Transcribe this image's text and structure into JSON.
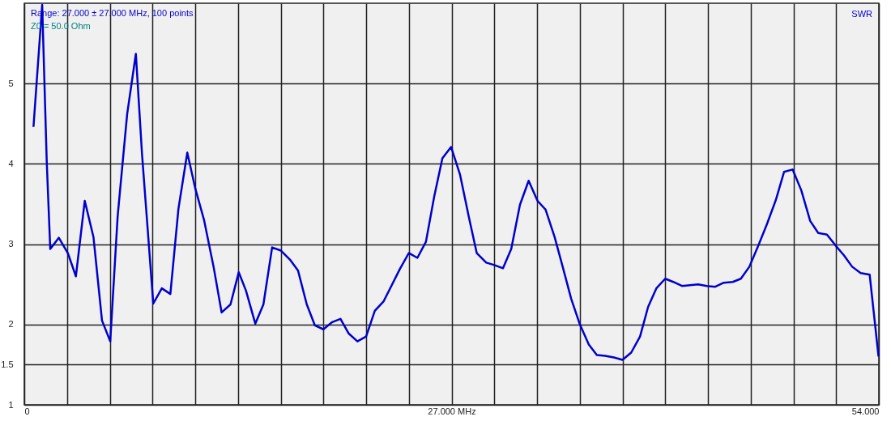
{
  "chart_data": {
    "type": "line",
    "annotations": [
      "Range: 27.000 ± 27.000 MHz, 100 points",
      "Z0 = 50.0 Ohm"
    ],
    "x": [
      0.58,
      1.13,
      1.42,
      1.64,
      2.18,
      2.75,
      3.26,
      3.82,
      4.37,
      4.91,
      5.43,
      5.9,
      6.5,
      7.05,
      7.44,
      8.15,
      8.69,
      9.23,
      9.74,
      10.3,
      10.81,
      11.36,
      11.96,
      12.47,
      13.03,
      13.55,
      14.01,
      14.6,
      15.11,
      15.66,
      16.22,
      16.82,
      17.3,
      17.85,
      18.36,
      18.9,
      19.46,
      19.98,
      20.49,
      21.05,
      21.6,
      22.15,
      22.71,
      23.22,
      23.73,
      24.3,
      24.84,
      25.38,
      25.9,
      26.42,
      26.97,
      27.53,
      28.08,
      28.59,
      29.19,
      29.7,
      30.25,
      30.77,
      31.32,
      31.87,
      32.43,
      32.94,
      33.51,
      34.02,
      34.56,
      35.11,
      35.67,
      36.18,
      36.7,
      37.26,
      37.8,
      38.35,
      38.91,
      39.42,
      39.94,
      40.5,
      41.01,
      41.56,
      42.07,
      42.58,
      43.13,
      43.66,
      44.2,
      44.77,
      45.28,
      45.82,
      46.38,
      46.93,
      47.49,
      48.01,
      48.55,
      49.1,
      49.66,
      50.17,
      50.72,
      51.28,
      51.8,
      52.31,
      52.85,
      53.42,
      53.98
    ],
    "series": [
      {
        "name": "SWR",
        "color": "#0000cc",
        "values": [
          4.46,
          5.98,
          4.02,
          2.94,
          3.08,
          2.89,
          2.6,
          3.54,
          3.09,
          2.05,
          1.79,
          3.35,
          4.62,
          5.37,
          4.12,
          2.26,
          2.45,
          2.38,
          3.44,
          4.14,
          3.69,
          3.3,
          2.72,
          2.15,
          2.25,
          2.65,
          2.42,
          2.01,
          2.25,
          2.96,
          2.92,
          2.8,
          2.67,
          2.25,
          1.99,
          1.94,
          2.03,
          2.07,
          1.89,
          1.79,
          1.85,
          2.17,
          2.29,
          2.49,
          2.69,
          2.89,
          2.83,
          3.03,
          3.59,
          4.07,
          4.21,
          3.87,
          3.35,
          2.89,
          2.77,
          2.74,
          2.7,
          2.94,
          3.49,
          3.79,
          3.54,
          3.43,
          3.09,
          2.72,
          2.32,
          2.0,
          1.75,
          1.62,
          1.61,
          1.59,
          1.56,
          1.65,
          1.85,
          2.22,
          2.45,
          2.57,
          2.53,
          2.48,
          2.49,
          2.5,
          2.48,
          2.47,
          2.52,
          2.53,
          2.57,
          2.72,
          2.98,
          3.25,
          3.55,
          3.9,
          3.93,
          3.67,
          3.29,
          3.14,
          3.12,
          2.98,
          2.86,
          2.72,
          2.64,
          2.62,
          1.6
        ]
      }
    ],
    "xlim": [
      0,
      54
    ],
    "xticks": [
      {
        "value": 0,
        "label": "0"
      },
      {
        "value": 2.7,
        "label": null
      },
      {
        "value": 5.4,
        "label": null
      },
      {
        "value": 8.1,
        "label": null
      },
      {
        "value": 10.8,
        "label": null
      },
      {
        "value": 13.5,
        "label": null
      },
      {
        "value": 16.2,
        "label": null
      },
      {
        "value": 18.9,
        "label": null
      },
      {
        "value": 21.6,
        "label": null
      },
      {
        "value": 24.3,
        "label": null
      },
      {
        "value": 27,
        "label": "27.000 MHz"
      },
      {
        "value": 29.7,
        "label": null
      },
      {
        "value": 32.4,
        "label": null
      },
      {
        "value": 35.1,
        "label": null
      },
      {
        "value": 37.8,
        "label": null
      },
      {
        "value": 40.5,
        "label": null
      },
      {
        "value": 43.2,
        "label": null
      },
      {
        "value": 45.9,
        "label": null
      },
      {
        "value": 48.6,
        "label": null
      },
      {
        "value": 51.3,
        "label": null
      },
      {
        "value": 54,
        "label": "54.000"
      }
    ],
    "ylim": [
      1,
      6
    ],
    "yticks": [
      1,
      1.5,
      2,
      3,
      4,
      5
    ],
    "grid": true,
    "legend": "top right",
    "marker": "none",
    "line_style": "solid"
  }
}
